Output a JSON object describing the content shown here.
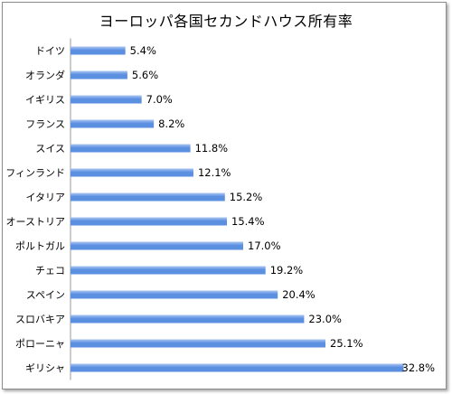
{
  "chart_data": {
    "type": "bar",
    "orientation": "horizontal",
    "title": "ヨーロッパ各国セカンドハウス所有率",
    "categories": [
      "ドイツ",
      "オランダ",
      "イギリス",
      "フランス",
      "スイス",
      "フィンランド",
      "イタリア",
      "オーストリア",
      "ポルトガル",
      "チェコ",
      "スペイン",
      "スロバキア",
      "ポローニャ",
      "ギリシャ"
    ],
    "values": [
      5.4,
      5.6,
      7.0,
      8.2,
      11.8,
      12.1,
      15.2,
      15.4,
      17.0,
      19.2,
      20.4,
      23.0,
      25.1,
      32.8
    ],
    "value_labels": [
      "5.4%",
      "5.6%",
      "7.0%",
      "8.2%",
      "11.8%",
      "12.1%",
      "15.2%",
      "15.4%",
      "17.0%",
      "19.2%",
      "20.4%",
      "23.0%",
      "25.1%",
      "32.8%"
    ],
    "highlighted_category": "スペイン",
    "xlim": [
      0,
      34
    ],
    "grid": false,
    "legend": "none",
    "colors": {
      "bar": "#5b8fe0",
      "bar_light": "#a9c6f3",
      "highlight_label": "#ff0000",
      "label": "#000000",
      "axis": "#9a9a9a"
    }
  }
}
